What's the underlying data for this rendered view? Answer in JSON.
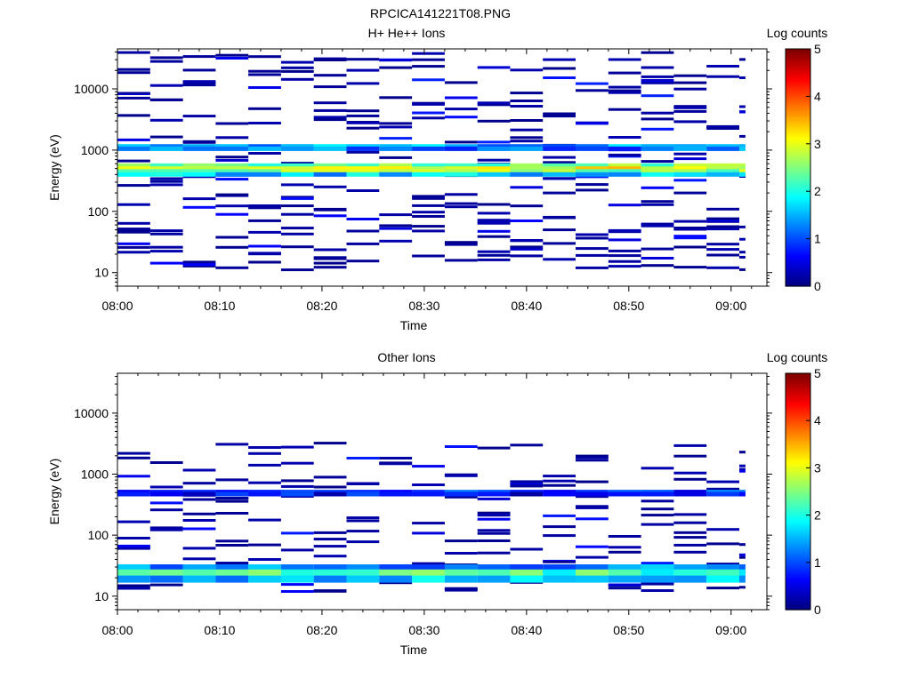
{
  "figure": {
    "title": "RPCICA141221T08.PNG",
    "colors": {
      "background": "#ffffff",
      "axis": "#000000"
    },
    "colormap": [
      "#00007f",
      "#0000ff",
      "#007fff",
      "#00ffff",
      "#7fff7f",
      "#ffff00",
      "#ff7f00",
      "#ff0000",
      "#7f0000"
    ]
  },
  "chart_data": [
    {
      "type": "heatmap",
      "title": "H+ He++ Ions",
      "xlabel": "Time",
      "ylabel": "Energy (eV)",
      "x_ticks": [
        "08:00",
        "08:10",
        "08:20",
        "08:30",
        "08:40",
        "08:50",
        "09:00"
      ],
      "y_ticks": [
        "10",
        "100",
        "1000",
        "10000"
      ],
      "y_scale": "log",
      "ylim": [
        6,
        45000
      ],
      "xlim_minutes": [
        0,
        63.5
      ],
      "colorbar": {
        "label": "Log counts",
        "ticks": [
          "0",
          "1",
          "2",
          "3",
          "4",
          "5"
        ],
        "range": [
          0,
          5
        ]
      },
      "time_bins_minutes": [
        0.0,
        3.2,
        6.4,
        9.6,
        12.8,
        16.0,
        19.2,
        22.4,
        25.6,
        28.8,
        32.0,
        35.2,
        38.4,
        41.6,
        44.8,
        48.0,
        51.2,
        54.4,
        57.6,
        60.8
      ],
      "dominant_bands_eV": [
        {
          "energy": 1150,
          "log_counts": 1.4
        },
        {
          "energy": 1050,
          "log_counts": 1.2
        },
        {
          "energy": 560,
          "log_counts": 2.4
        },
        {
          "energy": 500,
          "log_counts": 3.1
        },
        {
          "energy": 450,
          "log_counts": 2.6
        },
        {
          "energy": 400,
          "log_counts": 1.6
        }
      ],
      "sparse_counts": "scattered single-count pixels (log counts 0 to 0.3) between 10 eV and 40000 eV"
    },
    {
      "type": "heatmap",
      "title": "Other Ions",
      "xlabel": "Time",
      "ylabel": "Energy (eV)",
      "x_ticks": [
        "08:00",
        "08:10",
        "08:20",
        "08:30",
        "08:40",
        "08:50",
        "09:00"
      ],
      "y_ticks": [
        "10",
        "100",
        "1000",
        "10000"
      ],
      "y_scale": "log",
      "ylim": [
        6,
        45000
      ],
      "xlim_minutes": [
        0,
        63.5
      ],
      "colorbar": {
        "label": "Log counts",
        "ticks": [
          "0",
          "1",
          "2",
          "3",
          "4",
          "5"
        ],
        "range": [
          0,
          5
        ]
      },
      "time_bins_minutes": [
        0.0,
        3.2,
        6.4,
        9.6,
        12.8,
        16.0,
        19.2,
        22.4,
        25.6,
        28.8,
        32.0,
        35.2,
        38.4,
        41.6,
        44.8,
        48.0,
        51.2,
        54.4,
        57.6,
        60.8
      ],
      "dominant_bands_eV": [
        {
          "energy": 510,
          "log_counts": 0.9
        },
        {
          "energy": 470,
          "log_counts": 0.6
        },
        {
          "energy": 29,
          "log_counts": 1.3
        },
        {
          "energy": 24,
          "log_counts": 2.2
        },
        {
          "energy": 19,
          "log_counts": 1.6
        }
      ],
      "sparse_counts": "scattered single-count pixels (log counts 0 to 0.3) between 10 eV and 3200 eV"
    }
  ]
}
